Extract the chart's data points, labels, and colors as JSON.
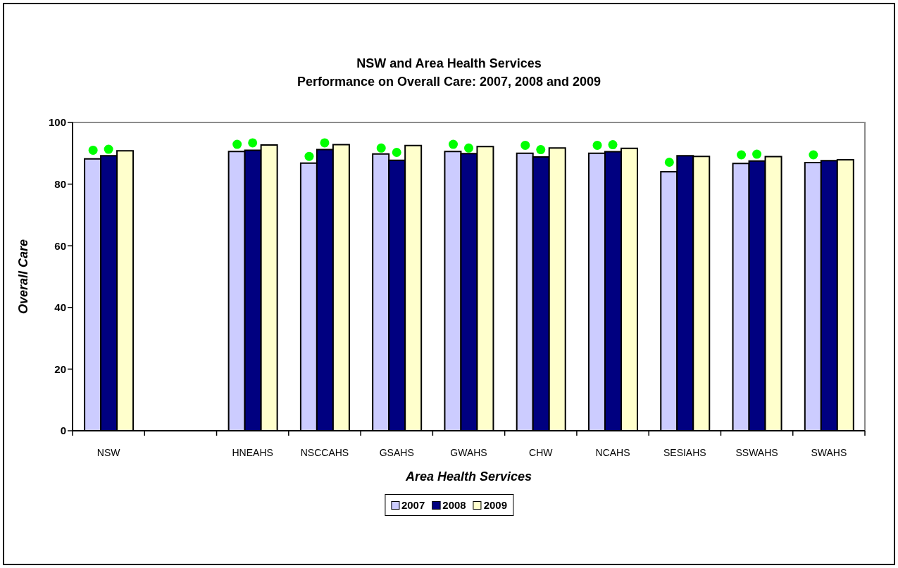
{
  "chart_data": {
    "type": "bar",
    "title": "NSW and Area Health Services",
    "subtitle": "Performance on Overall Care: 2007, 2008 and 2009",
    "xlabel": "Area Health Services",
    "ylabel": "Overall Care",
    "categories": [
      "NSW",
      null,
      "HNEAHS",
      "NSCCAHS",
      "GSAHS",
      "GWAHS",
      "CHW",
      "NCAHS",
      "SESIAHS",
      "SSWAHS",
      "SWAHS"
    ],
    "series": [
      {
        "name": "2007",
        "color": "#ccccff",
        "values": [
          88.2,
          null,
          90.6,
          86.8,
          89.8,
          90.6,
          90.0,
          90.0,
          84.0,
          86.7,
          87.0
        ]
      },
      {
        "name": "2008",
        "color": "#000080",
        "values": [
          89.2,
          null,
          91.0,
          91.2,
          87.7,
          89.9,
          88.8,
          90.5,
          89.2,
          87.5,
          87.6
        ]
      },
      {
        "name": "2009",
        "color": "#ffffcc",
        "values": [
          90.8,
          null,
          92.7,
          92.8,
          92.5,
          92.2,
          91.7,
          91.6,
          89.0,
          88.9,
          87.9
        ]
      },
      {
        "type": "scatter",
        "color": "#00ff00",
        "marker": "circle",
        "values": [
          91.0,
          null,
          92.9,
          89.0,
          91.7,
          92.9,
          92.6,
          92.6,
          87.1,
          89.5,
          89.5
        ]
      },
      {
        "type": "scatter",
        "color": "#00ff00",
        "marker": "circle",
        "values": [
          91.3,
          null,
          93.4,
          93.4,
          90.3,
          91.7,
          91.2,
          92.8,
          null,
          89.7,
          null
        ]
      }
    ],
    "ylim": [
      0,
      100
    ],
    "yticks": [
      0,
      20,
      40,
      60,
      80,
      100
    ],
    "legend": "bottom"
  }
}
